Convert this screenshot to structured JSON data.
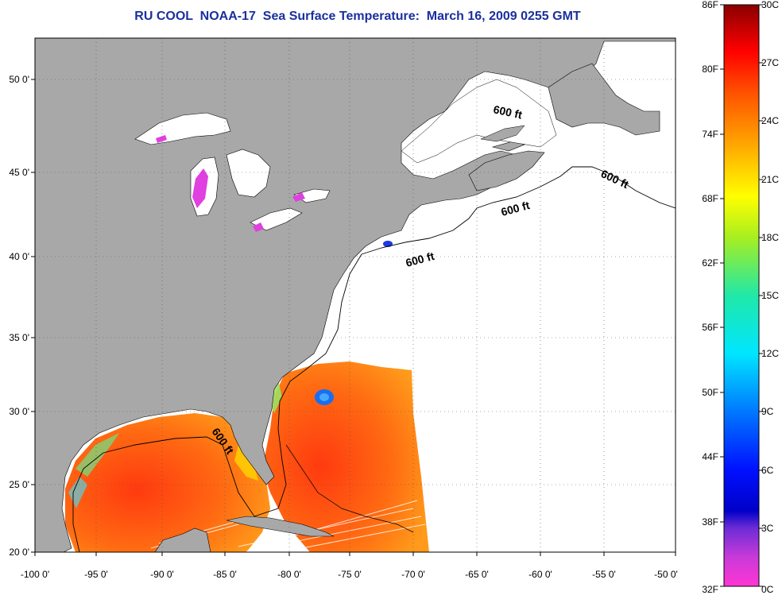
{
  "title": "RU COOL  NOAA-17  Sea Surface Temperature:  March 16, 2009 0255 GMT",
  "axes": {
    "x_ticks": [
      "-100 0'",
      "-95 0'",
      "-90 0'",
      "-85 0'",
      "-80 0'",
      "-75 0'",
      "-70 0'",
      "-65 0'",
      "-60 0'",
      "-55 0'",
      "-50 0'"
    ],
    "y_ticks": [
      "50 0'",
      "45 0'",
      "40 0'",
      "35 0'",
      "30 0'",
      "25 0'",
      "20 0'"
    ]
  },
  "contour_label": "600 ft",
  "colorbar": {
    "fahrenheit": [
      "86F",
      "80F",
      "74F",
      "68F",
      "62F",
      "56F",
      "50F",
      "44F",
      "38F",
      "32F"
    ],
    "celsius": [
      "30C",
      "27C",
      "24C",
      "21C",
      "18C",
      "15C",
      "12C",
      "9C",
      "6C",
      "3C",
      "0C"
    ]
  },
  "colors": {
    "land": "#a8a8a8",
    "title": "#1b2f9e"
  }
}
